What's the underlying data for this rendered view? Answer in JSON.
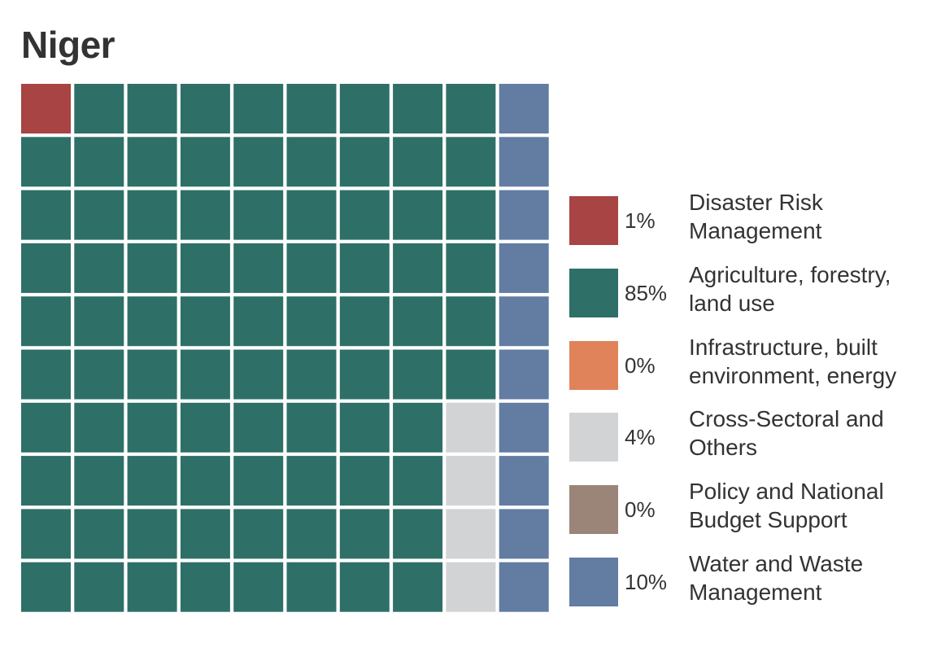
{
  "title": "Niger",
  "chart_data": {
    "type": "waffle",
    "grid": {
      "rows": 10,
      "cols": 10
    },
    "title": "Niger",
    "legend_position": "right",
    "categories": [
      {
        "key": "drm",
        "label": "Disaster Risk Management",
        "label_lines": [
          "Disaster Risk",
          "Management"
        ],
        "percent": 1,
        "percent_label": "1%",
        "color": "#a84444"
      },
      {
        "key": "afolu",
        "label": "Agriculture, forestry, land use",
        "label_lines": [
          "Agriculture, forestry,",
          "land use"
        ],
        "percent": 85,
        "percent_label": "85%",
        "color": "#2e7067"
      },
      {
        "key": "infra",
        "label": "Infrastructure, built environment, energy",
        "label_lines": [
          "Infrastructure, built",
          "environment, energy"
        ],
        "percent": 0,
        "percent_label": "0%",
        "color": "#e0835a"
      },
      {
        "key": "cross",
        "label": "Cross-Sectoral and Others",
        "label_lines": [
          "Cross-Sectoral and",
          "Others"
        ],
        "percent": 4,
        "percent_label": "4%",
        "color": "#d2d3d5"
      },
      {
        "key": "policy",
        "label": "Policy and National Budget Support",
        "label_lines": [
          "Policy and National",
          "Budget Support"
        ],
        "percent": 0,
        "percent_label": "0%",
        "color": "#9a8578"
      },
      {
        "key": "water",
        "label": "Water and Waste Management",
        "label_lines": [
          "Water and Waste",
          "Management"
        ],
        "percent": 10,
        "percent_label": "10%",
        "color": "#627ca2"
      }
    ]
  }
}
